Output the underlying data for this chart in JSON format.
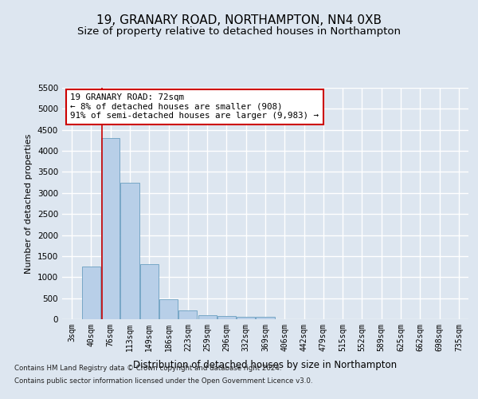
{
  "title_line1": "19, GRANARY ROAD, NORTHAMPTON, NN4 0XB",
  "title_line2": "Size of property relative to detached houses in Northampton",
  "xlabel": "Distribution of detached houses by size in Northampton",
  "ylabel": "Number of detached properties",
  "footer_line1": "Contains HM Land Registry data © Crown copyright and database right 2024.",
  "footer_line2": "Contains public sector information licensed under the Open Government Licence v3.0.",
  "bar_labels": [
    "3sqm",
    "40sqm",
    "76sqm",
    "113sqm",
    "149sqm",
    "186sqm",
    "223sqm",
    "259sqm",
    "296sqm",
    "332sqm",
    "369sqm",
    "406sqm",
    "442sqm",
    "479sqm",
    "515sqm",
    "552sqm",
    "589sqm",
    "625sqm",
    "662sqm",
    "698sqm",
    "735sqm"
  ],
  "bar_values": [
    0,
    1250,
    4300,
    3250,
    1300,
    480,
    200,
    100,
    70,
    50,
    50,
    0,
    0,
    0,
    0,
    0,
    0,
    0,
    0,
    0,
    0
  ],
  "bar_color": "#b8cfe8",
  "bar_edgecolor": "#6a9fc0",
  "annotation_text": "19 GRANARY ROAD: 72sqm\n← 8% of detached houses are smaller (908)\n91% of semi-detached houses are larger (9,983) →",
  "annotation_box_edgecolor": "#cc0000",
  "vline_color": "#cc0000",
  "vline_x_index": 1.55,
  "ylim_max": 5500,
  "yticks": [
    0,
    500,
    1000,
    1500,
    2000,
    2500,
    3000,
    3500,
    4000,
    4500,
    5000,
    5500
  ],
  "bg_color": "#dde6f0",
  "grid_color": "#ffffff",
  "title_fontsize": 11,
  "subtitle_fontsize": 9.5
}
